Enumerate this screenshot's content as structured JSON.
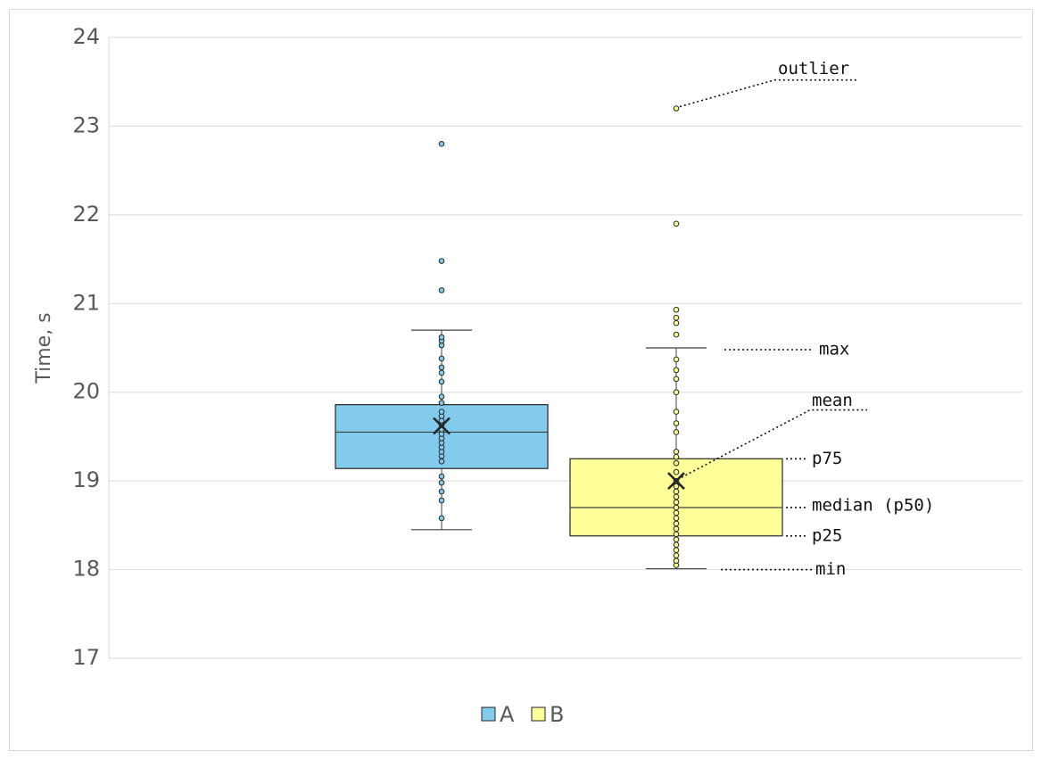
{
  "chart_data": {
    "type": "box",
    "ylabel": "Time, s",
    "ylim": [
      17,
      24
    ],
    "yticks": [
      17,
      18,
      19,
      20,
      21,
      22,
      23,
      24
    ],
    "grid": true,
    "legend": {
      "placement": "bottom",
      "entries": [
        "A",
        "B"
      ]
    },
    "series": [
      {
        "name": "A",
        "color": "#82cbec",
        "min": 18.45,
        "q1": 19.14,
        "median": 19.55,
        "q3": 19.86,
        "max": 20.7,
        "mean": 19.62,
        "points": [
          18.58,
          18.78,
          18.88,
          18.98,
          19.05,
          19.22,
          19.28,
          19.33,
          19.38,
          19.43,
          19.48,
          19.53,
          19.58,
          19.63,
          19.68,
          19.73,
          19.78,
          19.88,
          19.95,
          20.12,
          20.22,
          20.28,
          20.38,
          20.53,
          20.58,
          20.62
        ],
        "outliers": [
          21.15,
          21.48,
          22.8
        ]
      },
      {
        "name": "B",
        "color": "#ffff99",
        "min": 18.01,
        "q1": 18.38,
        "median": 18.7,
        "q3": 19.25,
        "max": 20.5,
        "mean": 19.0,
        "points": [
          18.05,
          18.1,
          18.16,
          18.22,
          18.28,
          18.34,
          18.4,
          18.46,
          18.52,
          18.58,
          18.64,
          18.7,
          18.76,
          18.82,
          18.88,
          18.94,
          19.0,
          19.1,
          19.2,
          19.27,
          19.33,
          19.55,
          19.65,
          19.78,
          20.0,
          20.15,
          20.25,
          20.37
        ],
        "outliers": [
          20.65,
          20.78,
          20.84,
          20.93,
          21.9,
          23.2
        ]
      }
    ],
    "annotations": [
      {
        "text": "outlier",
        "target": "B.outlier",
        "value": 23.2
      },
      {
        "text": "max",
        "target": "B.max",
        "value": 20.5
      },
      {
        "text": "mean",
        "target": "B.mean",
        "value": 19.0
      },
      {
        "text": "p75",
        "target": "B.q3",
        "value": 19.25
      },
      {
        "text": "median (p50)",
        "target": "B.median",
        "value": 18.7
      },
      {
        "text": "p25",
        "target": "B.q1",
        "value": 18.38
      },
      {
        "text": "min",
        "target": "B.min",
        "value": 18.01
      }
    ]
  }
}
